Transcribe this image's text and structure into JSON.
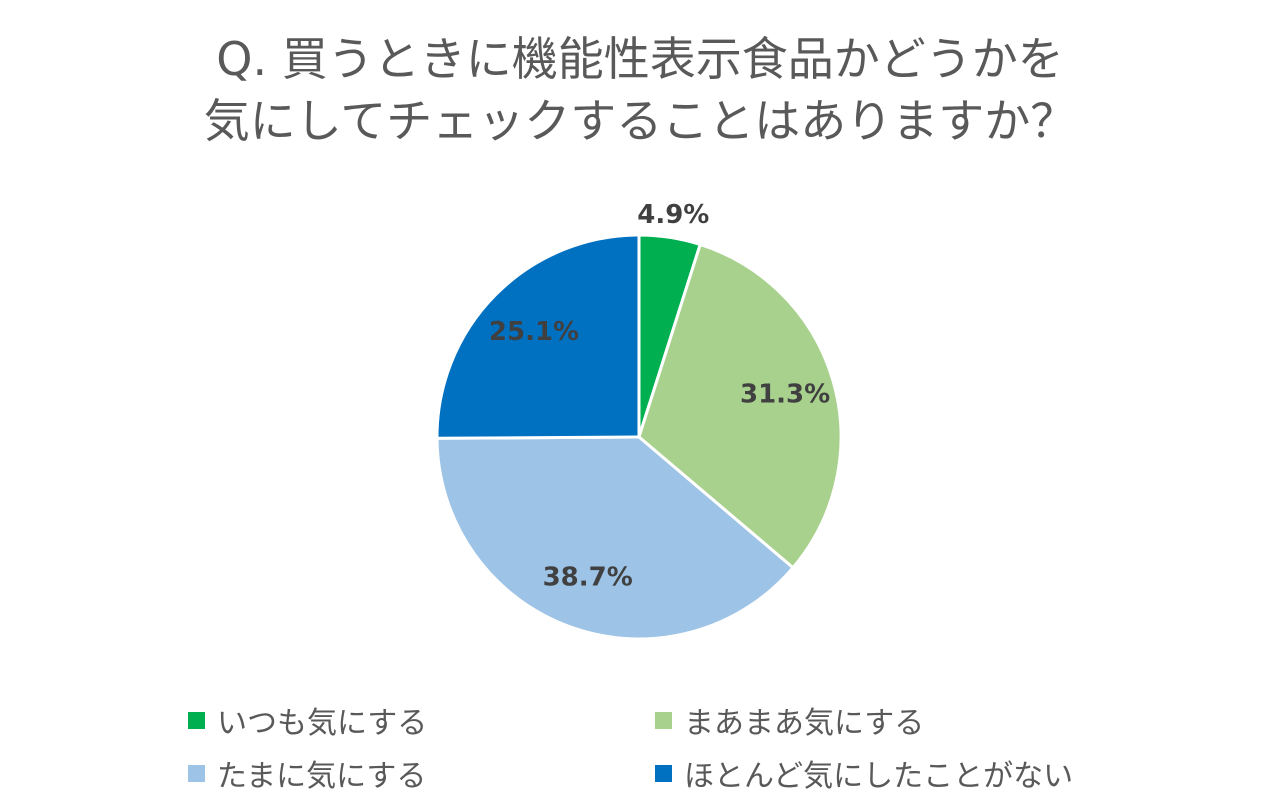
{
  "chart_data": {
    "type": "pie",
    "title_lines": [
      "Q. 買うときに機能性表示食品かどうかを",
      "気にしてチェックすることはありますか？"
    ],
    "series": [
      {
        "name": "いつも気にする",
        "value": 4.9,
        "label": "4.9%",
        "color": "#00B050"
      },
      {
        "name": "まあまあ気にする",
        "value": 31.3,
        "label": "31.3%",
        "color": "#A9D18E"
      },
      {
        "name": "たまに気にする",
        "value": 38.7,
        "label": "38.7%",
        "color": "#9DC3E6"
      },
      {
        "name": "ほとんど気にしたことがない",
        "value": 25.1,
        "label": "25.1%",
        "color": "#0070C0"
      }
    ],
    "start_angle": "12 o'clock",
    "direction": "clockwise",
    "legend": {
      "position": "bottom",
      "items": [
        {
          "label": "いつも気にする",
          "color": "#00B050"
        },
        {
          "label": "まあまあ気にする",
          "color": "#A9D18E"
        },
        {
          "label": "たまに気にする",
          "color": "#9DC3E6"
        },
        {
          "label": "ほとんど気にしたことがない",
          "color": "#0070C0"
        }
      ]
    }
  }
}
